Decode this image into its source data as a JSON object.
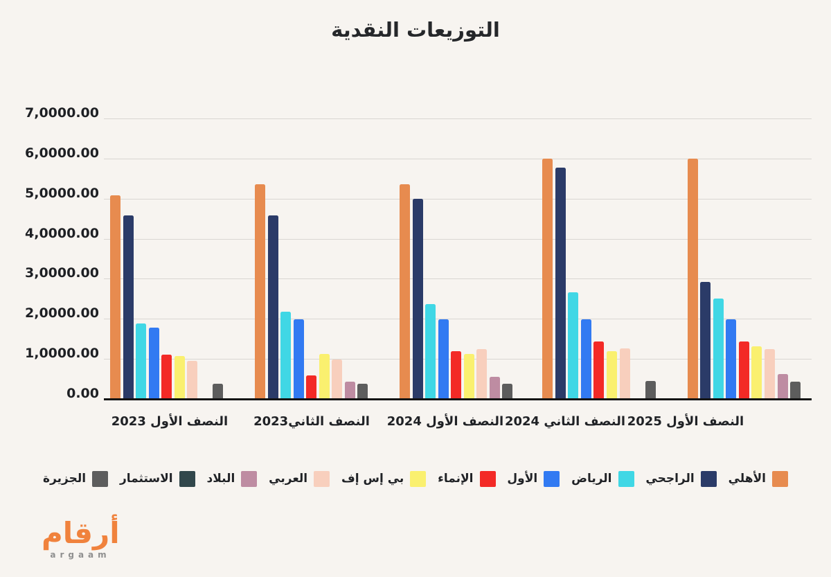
{
  "page": {
    "title": "التوزيعات النقدية"
  },
  "chart_data": {
    "type": "bar",
    "title": "التوزيعات النقدية",
    "layout": {
      "rtl": true,
      "grid": true,
      "legend_position": "bottom",
      "group_gap_present": true
    },
    "y_axis": {
      "min": 0,
      "max": 70000,
      "step": 10000,
      "tick_labels_top_to_bottom": [
        "7,0000.00",
        "6,0000.00",
        "5,0000.00",
        "4,0000.00",
        "3,0000.00",
        "2,0000.00",
        "1,0000.00",
        "0.00"
      ]
    },
    "categories": [
      "النصف الأول 2023",
      "النصف الثاني2023",
      "النصف الأول 2024",
      "النصف الثاني 2024",
      "النصف الأول 2025"
    ],
    "series": [
      {
        "name": "الأهلي",
        "color": "#E78B4F",
        "values": [
          50900,
          53600,
          53600,
          60000,
          60000
        ]
      },
      {
        "name": "الراجحي",
        "color": "#2B3B68",
        "values": [
          45800,
          45800,
          49900,
          57800,
          29200
        ]
      },
      {
        "name": "الرياض",
        "color": "#40D7E5",
        "values": [
          18900,
          21800,
          23700,
          26700,
          25000
        ]
      },
      {
        "name": "الأول",
        "color": "#327AF2",
        "values": [
          17800,
          19900,
          19900,
          19800,
          19900
        ]
      },
      {
        "name": "الإنماء",
        "color": "#F32A26",
        "values": [
          11000,
          5800,
          11900,
          14300,
          14300
        ]
      },
      {
        "name": "بي إس إف",
        "color": "#FAF06F",
        "values": [
          10800,
          11200,
          11200,
          12000,
          13100
        ]
      },
      {
        "name": "العربي",
        "color": "#F8CFBD",
        "values": [
          9500,
          9900,
          12500,
          12600,
          12500
        ]
      },
      {
        "name": "البلاد",
        "color": "#BE8CA2",
        "values": [
          null,
          4400,
          5600,
          null,
          6200
        ]
      },
      {
        "name": "الجزيرة",
        "color": "#5D5D5D",
        "values": [
          3800,
          3800,
          3800,
          4500,
          4300
        ]
      },
      {
        "name": "الاستثمار",
        "color": "#31474B",
        "values": [
          null,
          null,
          null,
          null,
          null
        ]
      }
    ],
    "legend_labels_right_to_left": [
      "الأهلي",
      "الراجحي",
      "الرياض",
      "الأول",
      "الإنماء",
      "بي إس إف",
      "العربي",
      "البلاد",
      "الاستثمار",
      "الجزيرة"
    ]
  },
  "legend": {
    "items": [
      {
        "label": "الأهلي",
        "color": "#E78B4F"
      },
      {
        "label": "الراجحي",
        "color": "#2B3B68"
      },
      {
        "label": "الرياض",
        "color": "#40D7E5"
      },
      {
        "label": "الأول",
        "color": "#327AF2"
      },
      {
        "label": "الإنماء",
        "color": "#F32A26"
      },
      {
        "label": "بي إس إف",
        "color": "#FAF06F"
      },
      {
        "label": "العربي",
        "color": "#F8CFBD"
      },
      {
        "label": "البلاد",
        "color": "#BE8CA2"
      },
      {
        "label": "الاستثمار",
        "color": "#31474B"
      },
      {
        "label": "الجزيرة",
        "color": "#5D5D5D"
      }
    ]
  },
  "logo": {
    "arabic": "أرقام",
    "latin": "argaam"
  },
  "colors": {
    "background": "#F7F4F0",
    "grid": "#D9D6D2",
    "axis": "#141414",
    "text": "#202226",
    "logo_orange": "#F0823D",
    "logo_gray": "#8F8F8F"
  }
}
